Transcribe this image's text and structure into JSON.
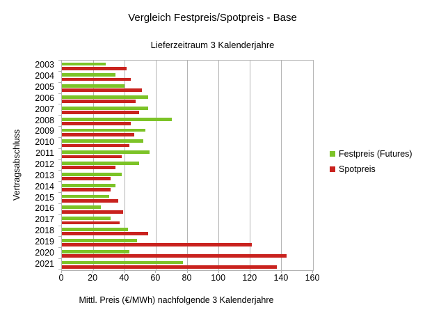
{
  "chart_data": {
    "type": "bar",
    "orientation": "horizontal",
    "title": "Vergleich Festpreis/Spotpreis - Base",
    "subtitle": "Lieferzeitraum 3 Kalenderjahre",
    "ylabel": "Vertragsabschluss",
    "xlabel": "Mittl. Preis (€/MWh) nachfolgende 3 Kalenderjahre",
    "xlim": [
      0,
      160
    ],
    "x_ticks": [
      0,
      20,
      40,
      60,
      80,
      100,
      120,
      140,
      160
    ],
    "grid": "vertical major gridlines",
    "legend_position": "right",
    "categories": [
      "2003",
      "2004",
      "2005",
      "2006",
      "2007",
      "2008",
      "2009",
      "2010",
      "2011",
      "2012",
      "2013",
      "2014",
      "2015",
      "2016",
      "2017",
      "2018",
      "2019",
      "2020",
      "2021"
    ],
    "series": [
      {
        "name": "Festpreis (Futures)",
        "color": "#7CC327",
        "values": [
          28,
          34,
          40,
          55,
          55,
          70,
          53,
          52,
          56,
          49,
          38,
          34,
          30,
          25,
          31,
          42,
          48,
          43,
          77
        ]
      },
      {
        "name": "Spotpreis",
        "color": "#C9221E",
        "values": [
          41,
          44,
          51,
          47,
          49,
          44,
          46,
          43,
          38,
          34,
          31,
          31,
          36,
          39,
          37,
          55,
          121,
          143,
          137
        ]
      }
    ]
  },
  "colors": {
    "gridline": "#b3b3b3",
    "axis_border": "#b3b3b3",
    "text": "#000000"
  }
}
